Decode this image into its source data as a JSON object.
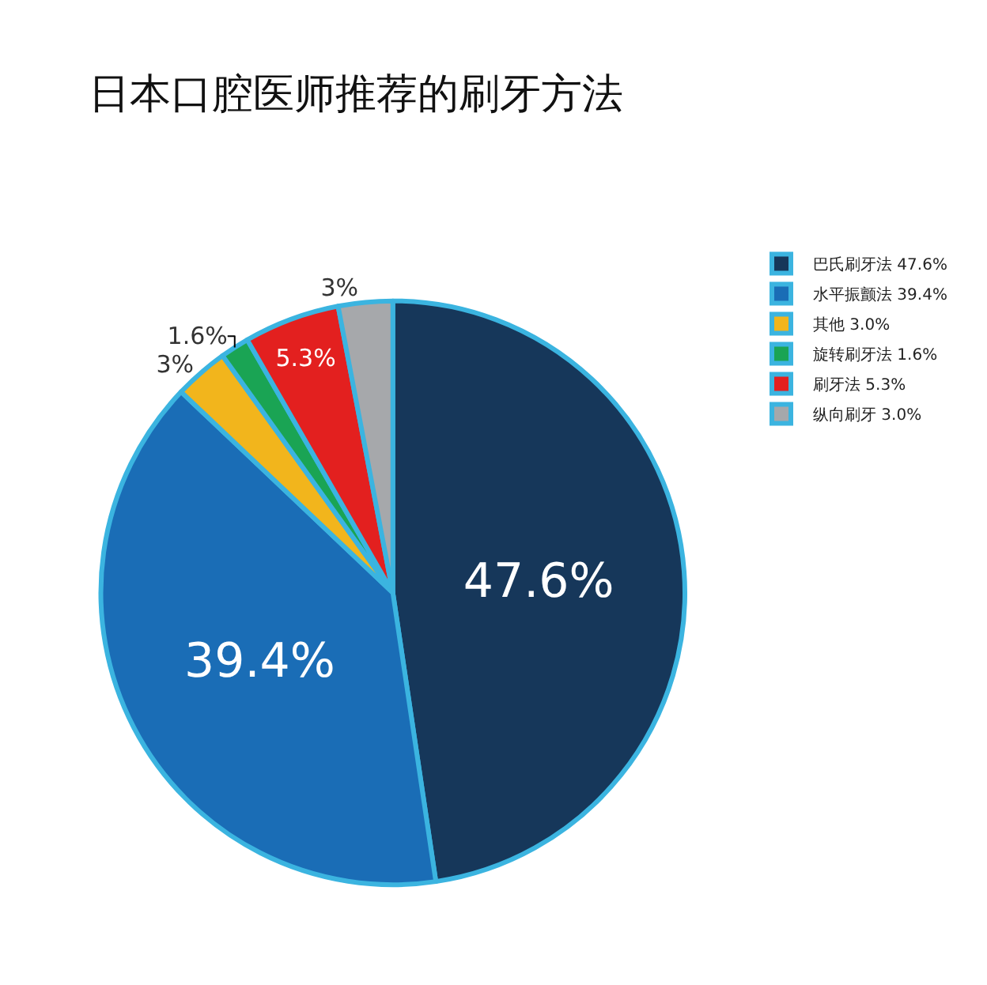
{
  "chart_data": {
    "type": "pie",
    "title": "日本口腔医师推荐的刷牙方法",
    "categories": [
      "巴氏刷牙法 47.6%",
      "水平振颤法 39.4%",
      "其他 3.0%",
      "旋转刷牙法 1.6%",
      "刷牙法 5.3%",
      "纵向刷牙 3.0%"
    ],
    "values": [
      47.6,
      39.4,
      3.0,
      1.6,
      5.3,
      3.0
    ],
    "value_labels": [
      "47.6%",
      "39.4%",
      "3%",
      "1.6%",
      "5.3%",
      "3%"
    ],
    "colors": [
      "#16375a",
      "#1a6db6",
      "#f2b51c",
      "#1aa454",
      "#e3201f",
      "#a6a8ab"
    ],
    "legend": "top right"
  }
}
